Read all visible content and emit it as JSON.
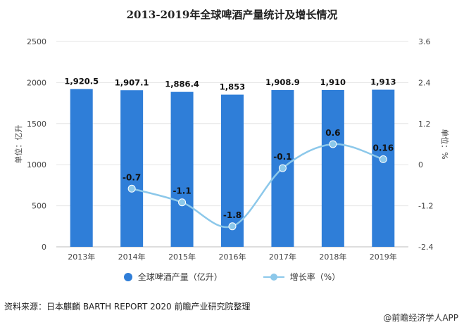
{
  "chart_data": {
    "type": "bar",
    "title": "2013-2019年全球啤酒产量统计及增长情况",
    "categories": [
      "2013年",
      "2014年",
      "2015年",
      "2016年",
      "2017年",
      "2018年",
      "2019年"
    ],
    "series": [
      {
        "name": "全球啤酒产量（亿升）",
        "type": "bar",
        "axis": "left",
        "values": [
          1920.5,
          1907.1,
          1886.4,
          1853,
          1908.9,
          1910,
          1913
        ],
        "labels": [
          "1,920.5",
          "1,907.1",
          "1,886.4",
          "1,853",
          "1,908.9",
          "1,910",
          "1,913"
        ]
      },
      {
        "name": "增长率（%）",
        "type": "line",
        "axis": "right",
        "values": [
          null,
          -0.7,
          -1.1,
          -1.8,
          -0.1,
          0.6,
          0.16
        ],
        "labels": [
          "",
          "-0.7",
          "-1.1",
          "-1.8",
          "-0.1",
          "0.6",
          "0.16"
        ]
      }
    ],
    "ylabel": "单位：亿升",
    "ylabel_right": "单位：%",
    "ylim": [
      0,
      2500
    ],
    "yticks": [
      0,
      500,
      1000,
      1500,
      2000,
      2500
    ],
    "ylim_right": [
      -2.4,
      3.6
    ],
    "yticks_right": [
      "-2.4",
      "-1.2",
      "0",
      "1.2",
      "2.4",
      "3.6"
    ],
    "colors": {
      "bar": "#2f7ed8",
      "line": "#8cc8ea",
      "grid": "#e6e6e6"
    }
  },
  "legend": {
    "bar_label": "全球啤酒产量（亿升）",
    "line_label": "增长率（%）"
  },
  "footer": {
    "source": "资料来源：日本麒麟 BARTH REPORT 2020 前瞻产业研究院整理",
    "brand": "@前瞻经济学人APP"
  }
}
